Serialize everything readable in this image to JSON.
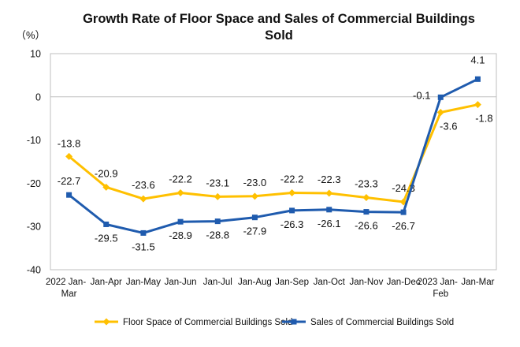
{
  "chart_data": {
    "type": "line",
    "title_lines": [
      "Growth Rate of Floor Space and Sales of Commercial Buildings",
      "Sold"
    ],
    "unit_label": "（%）",
    "ylim": [
      -40,
      10
    ],
    "yticks": [
      10,
      0,
      -10,
      -20,
      -30,
      -40
    ],
    "grid": false,
    "legend_position": "bottom",
    "categories": [
      [
        "2022 Jan-",
        "Mar"
      ],
      [
        "Jan-Apr"
      ],
      [
        "Jan-May"
      ],
      [
        "Jan-Jun"
      ],
      [
        "Jan-Jul"
      ],
      [
        "Jan-Aug"
      ],
      [
        "Jan-Sep"
      ],
      [
        "Jan-Oct"
      ],
      [
        "Jan-Nov"
      ],
      [
        "Jan-Dec"
      ],
      [
        "2023 Jan-",
        "Feb"
      ],
      [
        "Jan-Mar"
      ]
    ],
    "series": [
      {
        "name": "Floor Space of Commercial Buildings Sold",
        "color": "#FFC000",
        "marker": "diamond",
        "values": [
          -13.8,
          -20.9,
          -23.6,
          -22.2,
          -23.1,
          -23.0,
          -22.2,
          -22.3,
          -23.3,
          -24.3,
          -3.6,
          -1.8
        ],
        "labels": [
          "-13.8",
          "-20.9",
          "-23.6",
          "-22.2",
          "-23.1",
          "-23.0",
          "-22.2",
          "-22.3",
          "-23.3",
          "-24.3",
          "-3.6",
          "-1.8"
        ]
      },
      {
        "name": "Sales of Commercial Buildings Sold",
        "color": "#1F5BAE",
        "marker": "square",
        "values": [
          -22.7,
          -29.5,
          -31.5,
          -28.9,
          -28.8,
          -27.9,
          -26.3,
          -26.1,
          -26.6,
          -26.7,
          -0.1,
          4.1
        ],
        "labels": [
          "-22.7",
          "-29.5",
          "-31.5",
          "-28.9",
          "-28.8",
          "-27.9",
          "-26.3",
          "-26.1",
          "-26.6",
          "-26.7",
          "-0.1",
          "4.1"
        ]
      }
    ]
  }
}
